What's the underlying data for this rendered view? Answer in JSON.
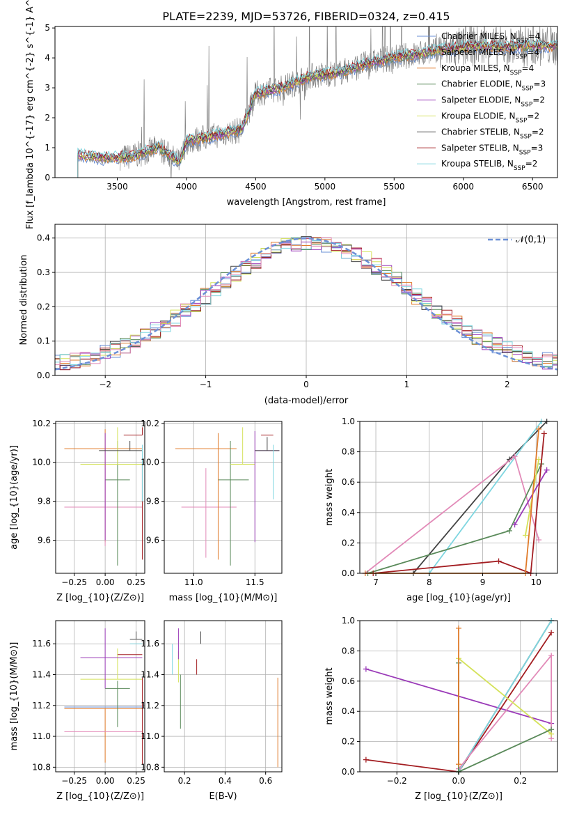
{
  "figure_title": "PLATE=2239, MJD=53726, FIBERID=0324, z=0.415",
  "colors": {
    "cm": "#6a8fd6",
    "sm": "#888888",
    "km": "#e07b2a",
    "ce": "#5a8a5a",
    "se": "#9a3ab8",
    "ke": "#d4e25a",
    "cs": "#444444",
    "ss": "#a31e22",
    "ks": "#7ed6e0",
    "pink": "#e28ab8",
    "gauss": "#6a8fd6",
    "grid": "#b0b0b0"
  },
  "chart_data": [
    {
      "id": "spectrum",
      "type": "line",
      "title": "PLATE=2239, MJD=53726, FIBERID=0324, z=0.415",
      "xlabel": "wavelength [Angstrom, rest frame]",
      "ylabel": "Flux [f$_\\lambda$ 10$^{-17}$ erg cm$^{-2}$ s$^{-1}$ A$^{-1}$]",
      "xlim": [
        3050,
        6680
      ],
      "ylim": [
        0,
        5.05
      ],
      "xticks": [
        3500,
        4000,
        4500,
        5000,
        5500,
        6000,
        6500
      ],
      "yticks": [
        0,
        1,
        2,
        3,
        4,
        5
      ],
      "grid": false,
      "legend_position": "top-right",
      "series": [
        {
          "name": "Chabrier MILES, N$_{SSP}$=4",
          "key": "cm"
        },
        {
          "name": "Salpeter MILES, N$_{SSP}$=4",
          "key": "sm"
        },
        {
          "name": "Kroupa MILES, N$_{SSP}$=4",
          "key": "km"
        },
        {
          "name": "Chabrier ELODIE, N$_{SSP}$=3",
          "key": "ce"
        },
        {
          "name": "Salpeter ELODIE, N$_{SSP}$=2",
          "key": "se"
        },
        {
          "name": "Kroupa ELODIE, N$_{SSP}$=2",
          "key": "ke"
        },
        {
          "name": "Chabrier STELIB, N$_{SSP}$=2",
          "key": "cs"
        },
        {
          "name": "Salpeter STELIB, N$_{SSP}$=3",
          "key": "ss"
        },
        {
          "name": "Kroupa STELIB, N$_{SSP}$=2",
          "key": "ks"
        }
      ],
      "continuum": [
        [
          3210,
          0.75
        ],
        [
          3400,
          0.65
        ],
        [
          3600,
          0.7
        ],
        [
          3800,
          1.0
        ],
        [
          3950,
          0.5
        ],
        [
          4000,
          1.2
        ],
        [
          4200,
          1.4
        ],
        [
          4400,
          1.6
        ],
        [
          4500,
          2.8
        ],
        [
          4700,
          3.0
        ],
        [
          4900,
          3.4
        ],
        [
          5100,
          3.5
        ],
        [
          5300,
          3.8
        ],
        [
          5500,
          4.0
        ],
        [
          5700,
          4.15
        ],
        [
          5900,
          4.3
        ],
        [
          6100,
          4.4
        ],
        [
          6300,
          4.35
        ],
        [
          6500,
          4.4
        ]
      ]
    },
    {
      "id": "residuals",
      "type": "line",
      "xlabel": "(data-model)/error",
      "ylabel": "Normed distribution",
      "xlim": [
        -2.5,
        2.5
      ],
      "ylim": [
        0,
        0.44
      ],
      "xticks": [
        -2,
        -1,
        0,
        1,
        2
      ],
      "yticks": [
        0.0,
        0.1,
        0.2,
        0.3,
        0.4
      ],
      "grid": true,
      "legend": "$\\mathcal{N}(0,1)$",
      "legend_position": "top-right"
    },
    {
      "id": "age_vs_Z",
      "type": "scatter",
      "xlabel": "Z [log$_{10}$($Z/Z_\\odot$)]",
      "ylabel": "age  [log$_{10}$($age/yr$)]",
      "xlim": [
        -0.4,
        0.32
      ],
      "ylim": [
        9.43,
        10.21
      ],
      "xticks": [
        -0.25,
        0.0,
        0.25
      ],
      "yticks": [
        9.6,
        9.8,
        10.0,
        10.2
      ]
    },
    {
      "id": "age_vs_mass",
      "type": "scatter",
      "xlabel": "mass [log$_{10}$($M/M_\\odot$)]",
      "xlim": [
        10.76,
        11.72
      ],
      "ylim": [
        9.43,
        10.21
      ],
      "xticks": [
        11.0,
        11.5
      ],
      "yticks": [
        9.6,
        9.8,
        10.0,
        10.2
      ]
    },
    {
      "id": "weight_vs_age",
      "type": "line",
      "xlabel": "age  [log$_{10}$($age/yr$)]",
      "ylabel": "mass weight",
      "xlim": [
        6.7,
        10.4
      ],
      "ylim": [
        0,
        1.0
      ],
      "xticks": [
        7,
        8,
        9,
        10
      ],
      "yticks": [
        0.0,
        0.2,
        0.4,
        0.6,
        0.8,
        1.0
      ]
    },
    {
      "id": "mass_vs_Z",
      "type": "scatter",
      "xlabel": "Z [log$_{10}$($Z/Z_\\odot$)]",
      "ylabel": "mass [log$_{10}$($M/M_\\odot$)]",
      "xlim": [
        -0.4,
        0.32
      ],
      "ylim": [
        10.77,
        11.75
      ],
      "xticks": [
        -0.25,
        0.0,
        0.25
      ],
      "yticks": [
        10.8,
        11.0,
        11.2,
        11.4,
        11.6
      ]
    },
    {
      "id": "mass_vs_ebv",
      "type": "scatter",
      "xlabel": "E(B-V)",
      "xlim": [
        0.1,
        0.68
      ],
      "ylim": [
        10.77,
        11.75
      ],
      "xticks": [
        0.2,
        0.4,
        0.6
      ],
      "yticks": [
        10.8,
        11.0,
        11.2,
        11.4,
        11.6
      ]
    },
    {
      "id": "weight_vs_Z",
      "type": "line",
      "xlabel": "Z [log$_{10}$($Z/Z_\\odot$)]",
      "ylabel": "mass weight",
      "xlim": [
        -0.32,
        0.32
      ],
      "ylim": [
        0,
        1.0
      ],
      "xticks": [
        -0.2,
        0.0,
        0.2
      ],
      "yticks": [
        0.0,
        0.2,
        0.4,
        0.6,
        0.8,
        1.0
      ]
    }
  ]
}
